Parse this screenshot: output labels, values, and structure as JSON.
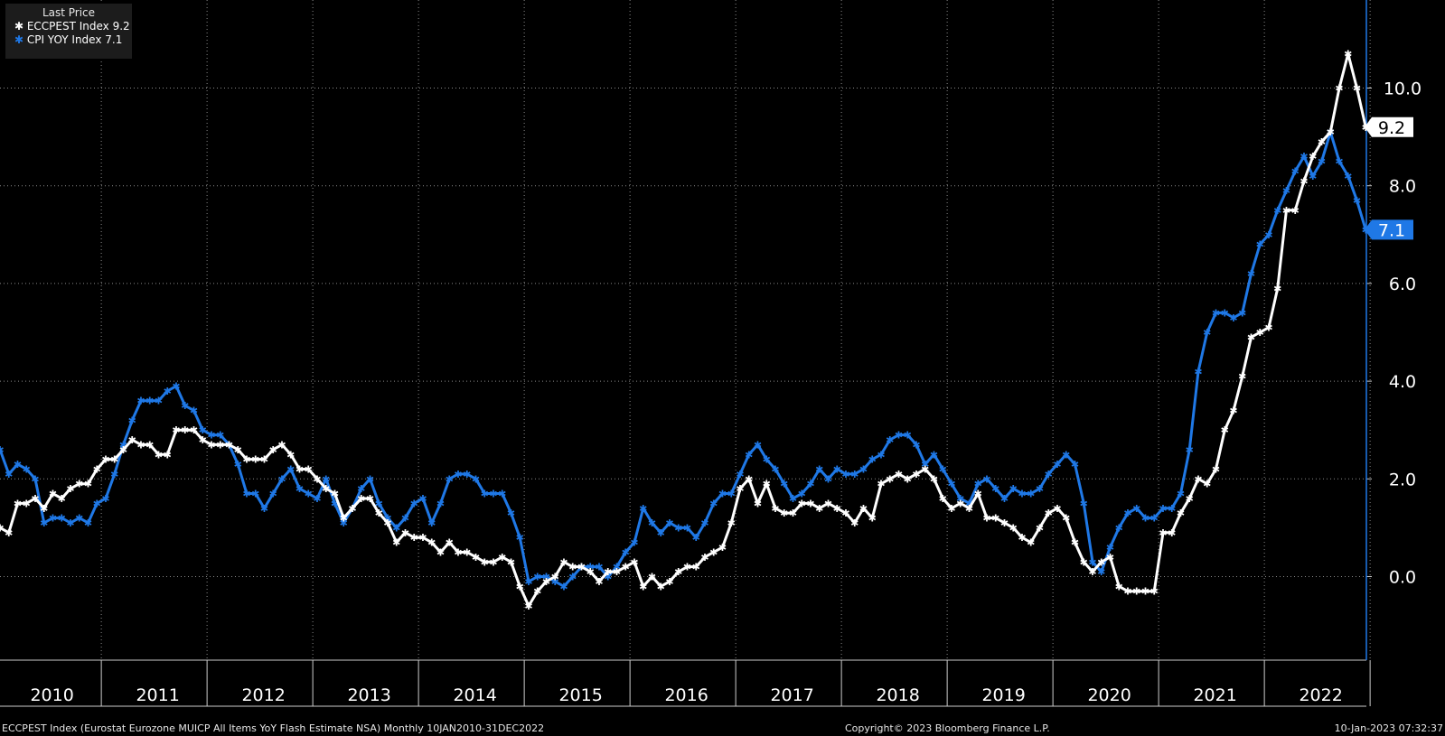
{
  "legend": {
    "header": "Last Price",
    "entries": [
      {
        "label": "ECCPEST Index 9.2",
        "color": "#ffffff"
      },
      {
        "label": "CPI YOY Index  7.1",
        "color": "#1f78e6"
      }
    ]
  },
  "footer": {
    "left": "ECCPEST Index (Eurostat Eurozone MUICP All Items YoY Flash Estimate NSA)  Monthly 10JAN2010-31DEC2022",
    "center": "Copyright© 2023 Bloomberg Finance L.P.",
    "right": "10-Jan-2023 07:32:37"
  },
  "chart_data": {
    "type": "line",
    "x_start": "2010-01",
    "x_end": "2022-12",
    "frequency": "monthly",
    "year_labels": [
      "2010",
      "2011",
      "2012",
      "2013",
      "2014",
      "2015",
      "2016",
      "2017",
      "2018",
      "2019",
      "2020",
      "2021",
      "2022"
    ],
    "y_ticks": [
      0,
      2,
      4,
      6,
      8,
      10
    ],
    "y_tick_labels": [
      "0.0",
      "2.0",
      "4.0",
      "6.0",
      "8.0",
      "10.0"
    ],
    "ylim": [
      -1.75,
      11.8
    ],
    "grid": true,
    "legend_position": "top-left",
    "series": [
      {
        "name": "ECCPEST Index",
        "color": "#ffffff",
        "last_value_label": "9.2",
        "values": [
          1.0,
          0.9,
          1.5,
          1.5,
          1.6,
          1.4,
          1.7,
          1.6,
          1.8,
          1.9,
          1.9,
          2.2,
          2.4,
          2.4,
          2.6,
          2.8,
          2.7,
          2.7,
          2.5,
          2.5,
          3.0,
          3.0,
          3.0,
          2.8,
          2.7,
          2.7,
          2.7,
          2.6,
          2.4,
          2.4,
          2.4,
          2.6,
          2.7,
          2.5,
          2.2,
          2.2,
          2.0,
          1.8,
          1.7,
          1.2,
          1.4,
          1.6,
          1.6,
          1.3,
          1.1,
          0.7,
          0.9,
          0.8,
          0.8,
          0.7,
          0.5,
          0.7,
          0.5,
          0.5,
          0.4,
          0.3,
          0.3,
          0.4,
          0.3,
          -0.2,
          -0.6,
          -0.3,
          -0.1,
          0.0,
          0.3,
          0.2,
          0.2,
          0.1,
          -0.1,
          0.1,
          0.1,
          0.2,
          0.3,
          -0.2,
          0.0,
          -0.2,
          -0.1,
          0.1,
          0.2,
          0.2,
          0.4,
          0.5,
          0.6,
          1.1,
          1.8,
          2.0,
          1.5,
          1.9,
          1.4,
          1.3,
          1.3,
          1.5,
          1.5,
          1.4,
          1.5,
          1.4,
          1.3,
          1.1,
          1.4,
          1.2,
          1.9,
          2.0,
          2.1,
          2.0,
          2.1,
          2.2,
          2.0,
          1.6,
          1.4,
          1.5,
          1.4,
          1.7,
          1.2,
          1.2,
          1.1,
          1.0,
          0.8,
          0.7,
          1.0,
          1.3,
          1.4,
          1.2,
          0.7,
          0.3,
          0.1,
          0.3,
          0.4,
          -0.2,
          -0.3,
          -0.3,
          -0.3,
          -0.3,
          0.9,
          0.9,
          1.3,
          1.6,
          2.0,
          1.9,
          2.2,
          3.0,
          3.4,
          4.1,
          4.9,
          5.0,
          5.1,
          5.9,
          7.5,
          7.5,
          8.1,
          8.6,
          8.9,
          9.1,
          10.0,
          10.7,
          10.0,
          9.2
        ]
      },
      {
        "name": "CPI YOY Index",
        "color": "#1f78e6",
        "last_value_label": "7.1",
        "values": [
          2.6,
          2.1,
          2.3,
          2.2,
          2.0,
          1.1,
          1.2,
          1.2,
          1.1,
          1.2,
          1.1,
          1.5,
          1.6,
          2.1,
          2.7,
          3.2,
          3.6,
          3.6,
          3.6,
          3.8,
          3.9,
          3.5,
          3.4,
          3.0,
          2.9,
          2.9,
          2.7,
          2.3,
          1.7,
          1.7,
          1.4,
          1.7,
          2.0,
          2.2,
          1.8,
          1.7,
          1.6,
          2.0,
          1.5,
          1.1,
          1.4,
          1.8,
          2.0,
          1.5,
          1.2,
          1.0,
          1.2,
          1.5,
          1.6,
          1.1,
          1.5,
          2.0,
          2.1,
          2.1,
          2.0,
          1.7,
          1.7,
          1.7,
          1.3,
          0.8,
          -0.1,
          0.0,
          0.0,
          -0.1,
          -0.2,
          0.0,
          0.2,
          0.2,
          0.2,
          0.0,
          0.2,
          0.5,
          0.7,
          1.4,
          1.1,
          0.9,
          1.1,
          1.0,
          1.0,
          0.8,
          1.1,
          1.5,
          1.7,
          1.7,
          2.1,
          2.5,
          2.7,
          2.4,
          2.2,
          1.9,
          1.6,
          1.7,
          1.9,
          2.2,
          2.0,
          2.2,
          2.1,
          2.1,
          2.2,
          2.4,
          2.5,
          2.8,
          2.9,
          2.9,
          2.7,
          2.3,
          2.5,
          2.2,
          1.9,
          1.6,
          1.5,
          1.9,
          2.0,
          1.8,
          1.6,
          1.8,
          1.7,
          1.7,
          1.8,
          2.1,
          2.3,
          2.5,
          2.3,
          1.5,
          0.3,
          0.1,
          0.6,
          1.0,
          1.3,
          1.4,
          1.2,
          1.2,
          1.4,
          1.4,
          1.7,
          2.6,
          4.2,
          5.0,
          5.4,
          5.4,
          5.3,
          5.4,
          6.2,
          6.8,
          7.0,
          7.5,
          7.9,
          8.3,
          8.6,
          8.2,
          8.5,
          9.1,
          8.5,
          8.2,
          7.7,
          7.1
        ]
      }
    ]
  }
}
